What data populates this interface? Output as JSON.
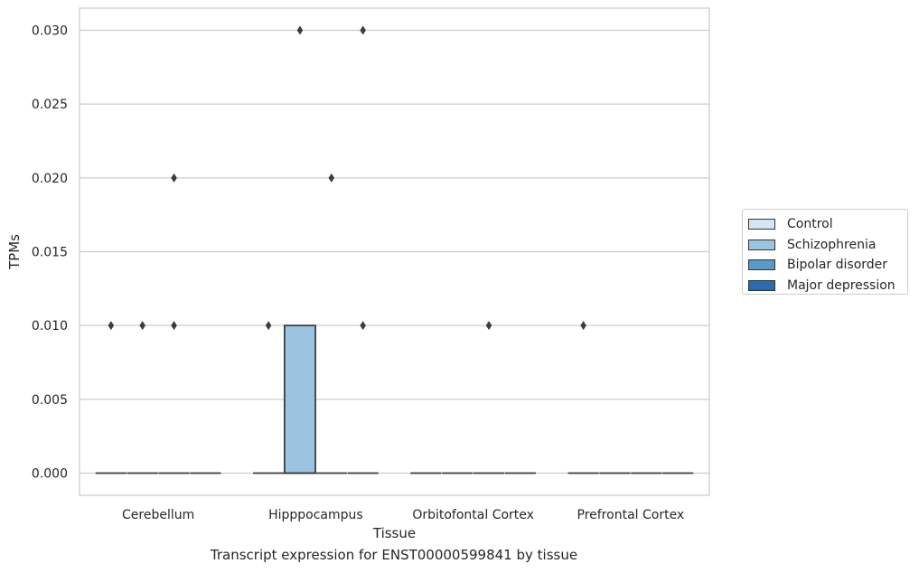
{
  "chart_data": {
    "type": "box",
    "title": "Transcript expression for ENST00000599841 by tissue",
    "xlabel": "Tissue",
    "ylabel": "TPMs",
    "ylim": [
      -0.0015,
      0.0315
    ],
    "yticks": [
      "0.000",
      "0.005",
      "0.010",
      "0.015",
      "0.020",
      "0.025",
      "0.030"
    ],
    "categories": [
      "Cerebellum",
      "Hipppocampus",
      "Orbitofontal Cortex",
      "Prefrontal Cortex"
    ],
    "grid": "horizontal",
    "legend_position": "right",
    "series": [
      {
        "name": "Control",
        "color": "#d6e5f2",
        "boxes": [
          {
            "q1": 0,
            "median": 0,
            "q3": 0,
            "outliers": [
              0.01
            ]
          },
          {
            "q1": 0,
            "median": 0,
            "q3": 0,
            "outliers": [
              0.01
            ]
          },
          {
            "q1": 0,
            "median": 0,
            "q3": 0,
            "outliers": []
          },
          {
            "q1": 0,
            "median": 0,
            "q3": 0,
            "outliers": [
              0.01
            ]
          }
        ]
      },
      {
        "name": "Schizophrenia",
        "color": "#9ac4df",
        "boxes": [
          {
            "q1": 0,
            "median": 0,
            "q3": 0,
            "outliers": [
              0.01
            ]
          },
          {
            "q1": 0,
            "median": 0,
            "q3": 0.01,
            "outliers": [
              0.03
            ]
          },
          {
            "q1": 0,
            "median": 0,
            "q3": 0,
            "outliers": []
          },
          {
            "q1": 0,
            "median": 0,
            "q3": 0,
            "outliers": []
          }
        ]
      },
      {
        "name": "Bipolar disorder",
        "color": "#5a9ac8",
        "boxes": [
          {
            "q1": 0,
            "median": 0,
            "q3": 0,
            "outliers": [
              0.01,
              0.02
            ]
          },
          {
            "q1": 0,
            "median": 0,
            "q3": 0,
            "outliers": [
              0.02
            ]
          },
          {
            "q1": 0,
            "median": 0,
            "q3": 0,
            "outliers": [
              0.01
            ]
          },
          {
            "q1": 0,
            "median": 0,
            "q3": 0,
            "outliers": []
          }
        ]
      },
      {
        "name": "Major depression",
        "color": "#2a6aad",
        "boxes": [
          {
            "q1": 0,
            "median": 0,
            "q3": 0,
            "outliers": []
          },
          {
            "q1": 0,
            "median": 0,
            "q3": 0,
            "outliers": [
              0.01,
              0.03
            ]
          },
          {
            "q1": 0,
            "median": 0,
            "q3": 0,
            "outliers": []
          },
          {
            "q1": 0,
            "median": 0,
            "q3": 0,
            "outliers": []
          }
        ]
      }
    ]
  }
}
